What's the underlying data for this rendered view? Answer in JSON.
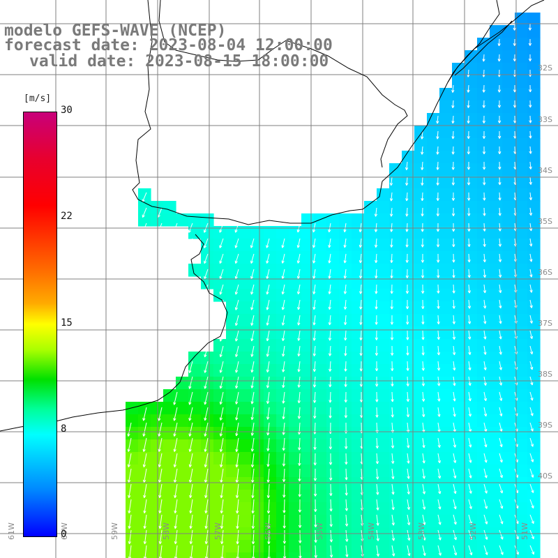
{
  "title": {
    "line1": "modelo GEFS-WAVE (NCEP)",
    "line2": "forecast date: 2023-08-04 12:00:00",
    "line3": "valid date: 2023-08-15 18:00:00"
  },
  "colorbar": {
    "unit": "[m/s]",
    "ticks": [
      "30",
      "22",
      "15",
      "8",
      "0"
    ],
    "tick_values": [
      30,
      22,
      15,
      8,
      0
    ],
    "range": [
      0,
      30
    ],
    "colors": [
      "#0000ff",
      "#0088ff",
      "#00ffff",
      "#00ff00",
      "#ffff00",
      "#ff6a00",
      "#ff0000",
      "#c8007a"
    ]
  },
  "map": {
    "land_color": "#ffffff",
    "coastline_color": "#000000",
    "grid_color": "#7f7f7f",
    "lat_labels": [
      "32S",
      "33S",
      "34S",
      "35S",
      "36S",
      "37S",
      "38S",
      "39S",
      "40S"
    ],
    "lon_labels": [
      "61W",
      "60W",
      "59W",
      "58W",
      "57W",
      "56W",
      "55W",
      "54W",
      "53W",
      "52W",
      "51W"
    ],
    "field": "wind speed with direction arrows"
  }
}
